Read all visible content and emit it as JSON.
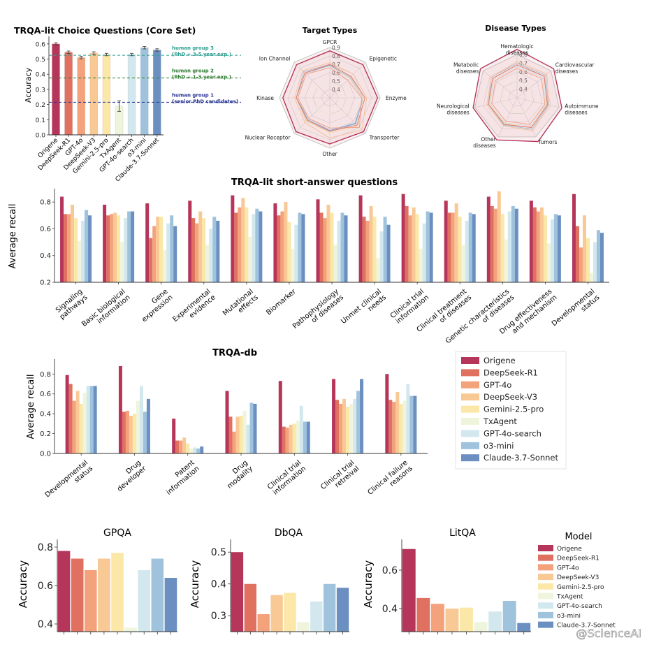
{
  "palette": [
    "#b5365a",
    "#e07060",
    "#f4a27c",
    "#f8c995",
    "#fbe7a8",
    "#eef5dc",
    "#d3e8ee",
    "#9fc3dc",
    "#6a8fc0"
  ],
  "axis_labels": {
    "accuracy": "Accuracy",
    "average_recall": "Average recall"
  },
  "legend": {
    "entries": [
      "Origene",
      "DeepSeek-R1",
      "GPT-4o",
      "DeepSeek-V3",
      "Gemini-2.5-pro",
      "TxAgent",
      "GPT-4o-search",
      "o3-mini",
      "Claude-3.7-Sonnet"
    ]
  },
  "bottom_legend": {
    "title": "Model",
    "entries": [
      "Origene",
      "DeepSeek-R1",
      "GPT-4o",
      "DeepSeek-V3",
      "Gemini-2.5-pro",
      "TxAgent",
      "GPT-4o-search",
      "o3-mini",
      "Claude-3.7-Sonnet"
    ]
  },
  "watermark": "@ScienceAI",
  "chart_data": [
    {
      "id": "choice",
      "type": "bar",
      "title": "TRQA-lit Choice Questions (Core Set)",
      "ylabel": "Accuracy",
      "categories": [
        "Origene",
        "DeepSeek-R1",
        "GPT-4o",
        "DeepSeek-V3",
        "Gemini-2.5-pro",
        "TxAgent",
        "GPT-4o-search",
        "o3-mini",
        "Claude-3.7-Sonnet"
      ],
      "values": [
        0.6,
        0.545,
        0.51,
        0.54,
        0.53,
        0.19,
        0.53,
        0.575,
        0.56
      ],
      "ylim": [
        0,
        0.65
      ],
      "yticks": [
        "0.0",
        "0.1",
        "0.2",
        "0.3",
        "0.4",
        "0.5",
        "0.6"
      ],
      "reference_lines": [
        {
          "value": 0.525,
          "label1": "human group 3",
          "label2": "(PhD + 3-5 year exp.)",
          "color": "#2a9d8f"
        },
        {
          "value": 0.375,
          "label1": "human group 2",
          "label2": "(PhD + 1-3 year exp.)",
          "color": "#2e7d32"
        },
        {
          "value": 0.215,
          "label1": "human group 1",
          "label2": "(senior PhD candidates)",
          "color": "#283593"
        }
      ]
    },
    {
      "id": "target",
      "type": "radar",
      "title": "Target Types",
      "axes": [
        "GPCR",
        "Epigenetic",
        "Enzyme",
        "Transporter",
        "Other",
        "Nuclear Receptor",
        "Kinase",
        "Ion Channel"
      ],
      "rlim": [
        0.3,
        0.9
      ],
      "ring_labels": [
        "0.4",
        "0.5",
        "0.6",
        "0.7",
        "0.8",
        "0.9"
      ],
      "series": [
        {
          "name": "Origene",
          "values": [
            0.86,
            0.86,
            0.87,
            0.87,
            0.85,
            0.87,
            0.86,
            0.86
          ]
        },
        {
          "name": "DeepSeek-R1",
          "values": [
            0.7,
            0.66,
            0.72,
            0.76,
            0.7,
            0.68,
            0.7,
            0.72
          ]
        },
        {
          "name": "GPT-4o",
          "values": [
            0.66,
            0.6,
            0.68,
            0.8,
            0.66,
            0.65,
            0.68,
            0.7
          ]
        },
        {
          "name": "DeepSeek-V3",
          "values": [
            0.72,
            0.7,
            0.74,
            0.84,
            0.78,
            0.72,
            0.72,
            0.76
          ]
        },
        {
          "name": "Gemini-2.5-pro",
          "values": [
            0.7,
            0.64,
            0.7,
            0.78,
            0.72,
            0.69,
            0.7,
            0.72
          ]
        },
        {
          "name": "TxAgent",
          "values": [
            0.5,
            0.48,
            0.5,
            0.55,
            0.5,
            0.5,
            0.52,
            0.5
          ]
        },
        {
          "name": "GPT-4o-search",
          "values": [
            0.68,
            0.63,
            0.69,
            0.72,
            0.68,
            0.66,
            0.68,
            0.7
          ]
        },
        {
          "name": "o3-mini",
          "values": [
            0.7,
            0.65,
            0.7,
            0.74,
            0.7,
            0.67,
            0.7,
            0.74
          ]
        },
        {
          "name": "Claude-3.7-Sonnet",
          "values": [
            0.69,
            0.64,
            0.69,
            0.73,
            0.69,
            0.66,
            0.7,
            0.72
          ]
        }
      ]
    },
    {
      "id": "disease",
      "type": "radar",
      "title": "Disease Types",
      "axes": [
        "Hematologic\ndiseases",
        "Cardiovascular\ndiseases",
        "Autoimmune\ndiseases",
        "Tumors",
        "Other\ndiseases",
        "Neurological\ndiseases",
        "Metabolic\ndiseases"
      ],
      "rlim": [
        0.3,
        0.8
      ],
      "ring_labels": [
        "0.4",
        "0.5",
        "0.6",
        "0.7",
        "0.8"
      ],
      "series": [
        {
          "name": "Origene",
          "values": [
            0.86,
            0.84,
            0.83,
            0.86,
            0.84,
            0.82,
            0.84
          ]
        },
        {
          "name": "DeepSeek-R1",
          "values": [
            0.68,
            0.7,
            0.66,
            0.68,
            0.64,
            0.64,
            0.66
          ]
        },
        {
          "name": "GPT-4o",
          "values": [
            0.64,
            0.66,
            0.63,
            0.64,
            0.6,
            0.6,
            0.62
          ]
        },
        {
          "name": "DeepSeek-V3",
          "values": [
            0.72,
            0.74,
            0.68,
            0.72,
            0.66,
            0.66,
            0.68
          ]
        },
        {
          "name": "Gemini-2.5-pro",
          "values": [
            0.68,
            0.7,
            0.65,
            0.68,
            0.63,
            0.63,
            0.66
          ]
        },
        {
          "name": "TxAgent",
          "values": [
            0.5,
            0.5,
            0.48,
            0.5,
            0.46,
            0.48,
            0.48
          ]
        },
        {
          "name": "GPT-4o-search",
          "values": [
            0.66,
            0.68,
            0.64,
            0.66,
            0.62,
            0.62,
            0.64
          ]
        },
        {
          "name": "o3-mini",
          "values": [
            0.7,
            0.72,
            0.67,
            0.7,
            0.65,
            0.64,
            0.68
          ]
        },
        {
          "name": "Claude-3.7-Sonnet",
          "values": [
            0.68,
            0.7,
            0.66,
            0.68,
            0.64,
            0.63,
            0.66
          ]
        }
      ]
    },
    {
      "id": "short",
      "type": "bar",
      "title": "TRQA-lit short-answer questions",
      "ylabel": "Average recall",
      "ylim": [
        0.2,
        0.9
      ],
      "yticks": [
        "0.2",
        "0.4",
        "0.6",
        "0.8"
      ],
      "categories": [
        "Signaling\npathways",
        "Basic biological\ninformation",
        "Gene\nexpression",
        "Experimental\nevidence",
        "Mutational\neffects",
        "Biomarker",
        "Pathophysiology\nof diseases",
        "Unmet clinical\nneeds",
        "Clinical trial\ninformation",
        "Clinical treatment\nof diseases",
        "Genetic characteristics\nof diseases",
        "Drug effectiveness\nand mechanism",
        "Developmental\nstatus"
      ],
      "series": [
        {
          "name": "Origene",
          "values": [
            0.84,
            0.78,
            0.79,
            0.81,
            0.85,
            0.79,
            0.82,
            0.85,
            0.86,
            0.81,
            0.84,
            0.81,
            0.86
          ]
        },
        {
          "name": "DeepSeek-R1",
          "values": [
            0.71,
            0.7,
            0.53,
            0.68,
            0.72,
            0.7,
            0.72,
            0.69,
            0.77,
            0.72,
            0.77,
            0.76,
            0.62
          ]
        },
        {
          "name": "GPT-4o",
          "values": [
            0.71,
            0.71,
            0.62,
            0.64,
            0.76,
            0.73,
            0.68,
            0.66,
            0.7,
            0.72,
            0.75,
            0.73,
            0.46
          ]
        },
        {
          "name": "DeepSeek-V3",
          "values": [
            0.78,
            0.72,
            0.69,
            0.73,
            0.83,
            0.8,
            0.78,
            0.77,
            0.76,
            0.79,
            0.88,
            0.76,
            0.7
          ]
        },
        {
          "name": "Gemini-2.5-pro",
          "values": [
            0.68,
            0.7,
            0.69,
            0.68,
            0.76,
            0.65,
            0.72,
            0.69,
            0.71,
            0.69,
            0.71,
            0.7,
            0.53
          ]
        },
        {
          "name": "TxAgent",
          "values": [
            0.51,
            0.5,
            0.44,
            0.48,
            0.54,
            0.45,
            0.48,
            0.38,
            0.45,
            0.48,
            0.52,
            0.49,
            0.27
          ]
        },
        {
          "name": "GPT-4o-search",
          "values": [
            0.66,
            0.68,
            0.64,
            0.6,
            0.71,
            0.63,
            0.66,
            0.58,
            0.64,
            0.66,
            0.73,
            0.67,
            0.5
          ]
        },
        {
          "name": "o3-mini",
          "values": [
            0.74,
            0.73,
            0.7,
            0.69,
            0.75,
            0.72,
            0.72,
            0.69,
            0.73,
            0.72,
            0.77,
            0.71,
            0.59
          ]
        },
        {
          "name": "Claude-3.7-Sonnet",
          "values": [
            0.7,
            0.73,
            0.62,
            0.66,
            0.73,
            0.71,
            0.7,
            0.63,
            0.72,
            0.71,
            0.75,
            0.7,
            0.57
          ]
        }
      ]
    },
    {
      "id": "db",
      "type": "bar",
      "title": "TRQA-db",
      "ylabel": "Average recall",
      "ylim": [
        0,
        0.95
      ],
      "yticks": [
        "0.0",
        "0.2",
        "0.4",
        "0.6",
        "0.8"
      ],
      "categories": [
        "Developmental\nstatus",
        "Drug\ndeveloper",
        "Patent\ninformation",
        "Drug\nmodality",
        "Clinical trial\ninformation",
        "Clinical trial\nretreival",
        "Clinical failure\nreasons"
      ],
      "series": [
        {
          "name": "Origene",
          "values": [
            0.79,
            0.88,
            0.35,
            0.63,
            0.73,
            0.75,
            0.8
          ]
        },
        {
          "name": "DeepSeek-R1",
          "values": [
            0.7,
            0.42,
            0.13,
            0.37,
            0.27,
            0.54,
            0.54
          ]
        },
        {
          "name": "GPT-4o",
          "values": [
            0.53,
            0.43,
            0.13,
            0.22,
            0.26,
            0.5,
            0.52
          ]
        },
        {
          "name": "DeepSeek-V3",
          "values": [
            0.63,
            0.38,
            0.16,
            0.37,
            0.29,
            0.55,
            0.62
          ]
        },
        {
          "name": "Gemini-2.5-pro",
          "values": [
            0.5,
            0.4,
            0.1,
            0.38,
            0.3,
            0.47,
            0.5
          ]
        },
        {
          "name": "TxAgent",
          "values": [
            0.61,
            0.53,
            0.05,
            0.43,
            0.33,
            0.5,
            0.53
          ]
        },
        {
          "name": "GPT-4o-search",
          "values": [
            0.68,
            0.68,
            0.06,
            0.29,
            0.48,
            0.55,
            0.7
          ]
        },
        {
          "name": "o3-mini",
          "values": [
            0.68,
            0.42,
            0.05,
            0.51,
            0.32,
            0.63,
            0.58
          ]
        },
        {
          "name": "Claude-3.7-Sonnet",
          "values": [
            0.68,
            0.55,
            0.07,
            0.5,
            0.32,
            0.75,
            0.58
          ]
        }
      ]
    },
    {
      "id": "gpqa",
      "type": "bar",
      "title": "GPQA",
      "ylabel": "Accuracy",
      "categories": [
        "Origene",
        "DeepSeek-R1",
        "GPT-4o",
        "DeepSeek-V3",
        "Gemini-2.5-pro",
        "TxAgent",
        "GPT-4o-search",
        "o3-mini",
        "Claude-3.7-Sonnet"
      ],
      "values": [
        0.78,
        0.74,
        0.68,
        0.74,
        0.77,
        0.38,
        0.68,
        0.74,
        0.64
      ],
      "ylim": [
        0.36,
        0.84
      ],
      "yticks": [
        "0.4",
        "0.6",
        "0.8"
      ]
    },
    {
      "id": "dbqa",
      "type": "bar",
      "title": "DbQA",
      "ylabel": "Accuracy",
      "categories": [
        "Origene",
        "DeepSeek-R1",
        "GPT-4o",
        "DeepSeek-V3",
        "Gemini-2.5-pro",
        "TxAgent",
        "GPT-4o-search",
        "o3-mini",
        "Claude-3.7-Sonnet"
      ],
      "values": [
        0.5,
        0.4,
        0.305,
        0.365,
        0.372,
        0.28,
        0.345,
        0.4,
        0.388
      ],
      "ylim": [
        0.25,
        0.54
      ],
      "yticks": [
        "0.3",
        "0.4",
        "0.5"
      ]
    },
    {
      "id": "litqa",
      "type": "bar",
      "title": "LitQA",
      "ylabel": "Accuracy",
      "categories": [
        "Origene",
        "DeepSeek-R1",
        "GPT-4o",
        "DeepSeek-V3",
        "Gemini-2.5-pro",
        "TxAgent",
        "GPT-4o-search",
        "o3-mini",
        "Claude-3.7-Sonnet"
      ],
      "values": [
        0.71,
        0.455,
        0.425,
        0.4,
        0.405,
        0.33,
        0.385,
        0.44,
        0.325
      ],
      "ylim": [
        0.28,
        0.76
      ],
      "yticks": [
        "0.4",
        "0.6"
      ]
    }
  ]
}
